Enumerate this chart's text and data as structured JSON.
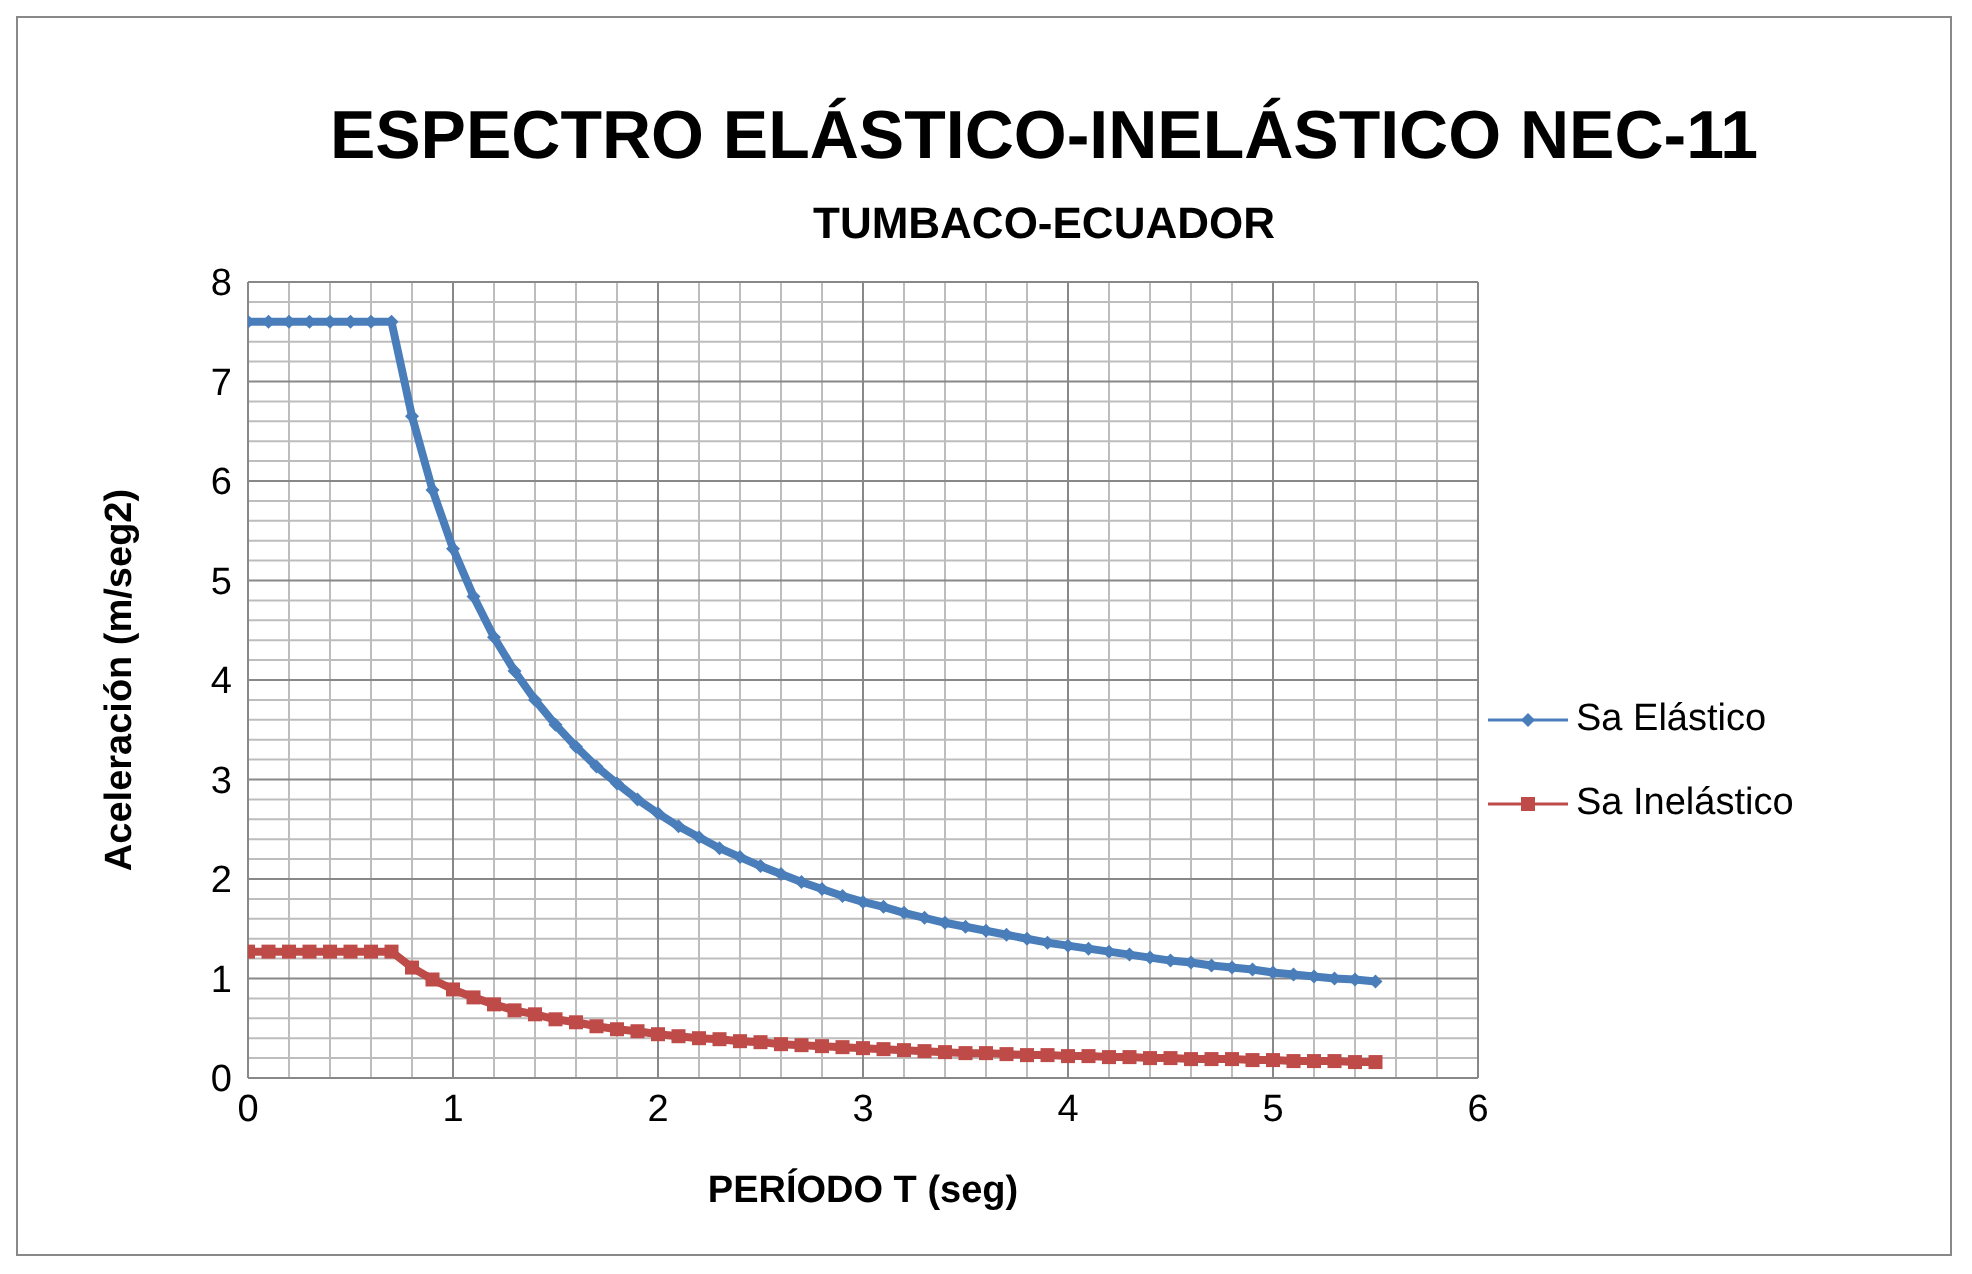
{
  "chart_data": {
    "type": "line",
    "title": "ESPECTRO ELÁSTICO-INELÁSTICO NEC-11",
    "subtitle": "TUMBACO-ECUADOR",
    "xlabel": "PERÍODO T (seg)",
    "ylabel": "Aceleración (m/seg2)",
    "x": [
      0,
      0.1,
      0.2,
      0.3,
      0.4,
      0.5,
      0.6,
      0.7,
      0.8,
      0.9,
      1.0,
      1.1,
      1.2,
      1.3,
      1.4,
      1.5,
      1.6,
      1.7,
      1.8,
      1.9,
      2.0,
      2.1,
      2.2,
      2.3,
      2.4,
      2.5,
      2.6,
      2.7,
      2.8,
      2.9,
      3.0,
      3.1,
      3.2,
      3.3,
      3.4,
      3.5,
      3.6,
      3.7,
      3.8,
      3.9,
      4.0,
      4.1,
      4.2,
      4.3,
      4.4,
      4.5,
      4.6,
      4.7,
      4.8,
      4.9,
      5.0,
      5.1,
      5.2,
      5.3,
      5.4,
      5.5
    ],
    "series": [
      {
        "name": "Sa Elástico",
        "color": "#4a7ebb",
        "marker": "diamond",
        "values": [
          7.6,
          7.6,
          7.6,
          7.6,
          7.6,
          7.6,
          7.6,
          7.6,
          6.65,
          5.91,
          5.32,
          4.84,
          4.43,
          4.09,
          3.8,
          3.55,
          3.33,
          3.13,
          2.96,
          2.8,
          2.66,
          2.53,
          2.42,
          2.31,
          2.22,
          2.13,
          2.05,
          1.97,
          1.9,
          1.83,
          1.77,
          1.72,
          1.66,
          1.61,
          1.56,
          1.52,
          1.48,
          1.44,
          1.4,
          1.36,
          1.33,
          1.3,
          1.27,
          1.24,
          1.21,
          1.18,
          1.16,
          1.13,
          1.11,
          1.09,
          1.06,
          1.04,
          1.02,
          1.0,
          0.99,
          0.97
        ]
      },
      {
        "name": "Sa Inelástico",
        "color": "#be4b48",
        "marker": "square",
        "values": [
          1.27,
          1.27,
          1.27,
          1.27,
          1.27,
          1.27,
          1.27,
          1.27,
          1.11,
          0.99,
          0.89,
          0.81,
          0.74,
          0.68,
          0.64,
          0.59,
          0.56,
          0.52,
          0.49,
          0.47,
          0.44,
          0.42,
          0.4,
          0.39,
          0.37,
          0.36,
          0.34,
          0.33,
          0.32,
          0.31,
          0.3,
          0.29,
          0.28,
          0.27,
          0.26,
          0.25,
          0.25,
          0.24,
          0.23,
          0.23,
          0.22,
          0.22,
          0.21,
          0.21,
          0.2,
          0.2,
          0.19,
          0.19,
          0.19,
          0.18,
          0.18,
          0.17,
          0.17,
          0.17,
          0.16,
          0.16
        ]
      }
    ],
    "xlim": [
      0,
      6
    ],
    "xticks": [
      0,
      1,
      2,
      3,
      4,
      5,
      6
    ],
    "ylim": [
      0,
      8
    ],
    "yticks": [
      0,
      1,
      2,
      3,
      4,
      5,
      6,
      7,
      8
    ],
    "grid": true,
    "legend": "right"
  }
}
